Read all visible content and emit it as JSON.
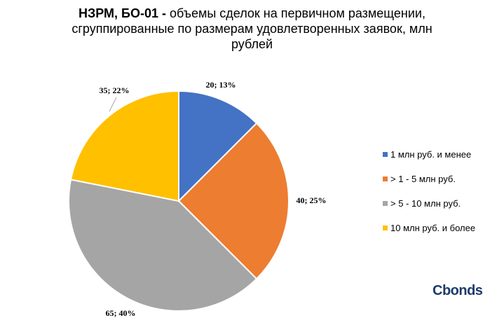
{
  "title": {
    "bold_part": "НЗРМ, БО-01 -",
    "rest_line1": " объемы сделок на первичном размещении,",
    "line2": "сгруппированные по размерам удовлетворенных заявок, млн",
    "line3": "рублей"
  },
  "chart_data": {
    "type": "pie",
    "title": "НЗРМ, БО-01 - объемы сделок на первичном размещении, сгруппированные по размерам удовлетворенных заявок, млн рублей",
    "legend_position": "right",
    "slices": [
      {
        "label": "1 млн руб. и менее",
        "value": 20,
        "percent": 13,
        "data_label": "20; 13%",
        "color": "#4472C4"
      },
      {
        "label": "> 1 - 5 млн руб.",
        "value": 40,
        "percent": 25,
        "data_label": "40; 25%",
        "color": "#ED7D31"
      },
      {
        "label": "> 5 - 10 млн руб.",
        "value": 65,
        "percent": 40,
        "data_label": "65; 40%",
        "color": "#A5A5A5"
      },
      {
        "label": "10 млн руб. и более",
        "value": 35,
        "percent": 22,
        "data_label": "35; 22%",
        "color": "#FFC000"
      }
    ]
  },
  "logo": {
    "text": "Cbonds"
  }
}
